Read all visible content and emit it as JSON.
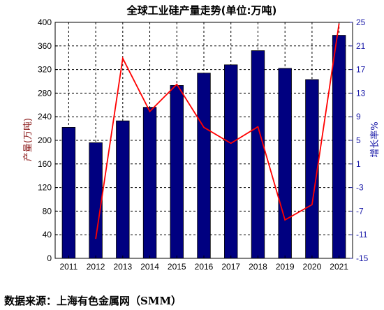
{
  "chart_data": {
    "type": "bar",
    "title": "全球工业硅产量走势(单位:万吨)",
    "ylabel": "产量(万吨)",
    "y2label": "增长率%",
    "categories": [
      "2011",
      "2012",
      "2013",
      "2014",
      "2015",
      "2016",
      "2017",
      "2018",
      "2019",
      "2020",
      "2021"
    ],
    "series": [
      {
        "type": "bar",
        "axis": "left",
        "color": "#000080",
        "values": [
          222,
          196,
          233,
          256,
          293,
          314,
          328,
          352,
          322,
          303,
          378
        ]
      },
      {
        "type": "line",
        "axis": "right",
        "color": "#ff0000",
        "values": [
          null,
          -11.7,
          18.9,
          9.9,
          14.5,
          7.2,
          4.5,
          7.3,
          -8.5,
          -5.9,
          24.8
        ]
      }
    ],
    "ylim": [
      0,
      400
    ],
    "yticks": [
      0,
      40,
      80,
      120,
      160,
      200,
      240,
      280,
      320,
      360,
      400
    ],
    "y2lim": [
      -15,
      25
    ],
    "y2ticks": [
      -15,
      -11,
      -7,
      -3,
      1,
      5,
      9,
      13,
      17,
      21,
      25
    ],
    "grid": true
  },
  "source_note": "数据来源：上海有色金属网（SMM）"
}
